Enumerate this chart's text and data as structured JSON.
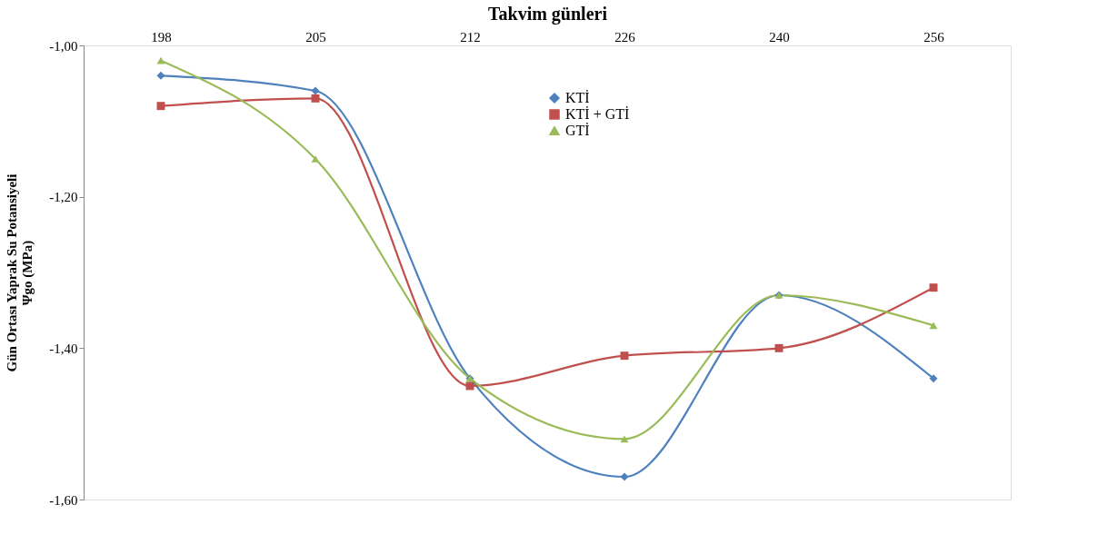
{
  "chart_data": {
    "type": "line",
    "xlabel": "Takvim günleri",
    "ylabel": "Gün Ortası Yaprak Su Potansiyeli\nΨgo (MPa)",
    "categories": [
      "198",
      "205",
      "212",
      "226",
      "240",
      "256"
    ],
    "series": [
      {
        "name": "KTİ",
        "color": "#4f81bd",
        "marker": "diamond",
        "values": [
          -1.04,
          -1.06,
          -1.44,
          -1.57,
          -1.33,
          -1.44
        ]
      },
      {
        "name": "KTİ + GTİ",
        "color": "#c0504d",
        "marker": "square",
        "values": [
          -1.08,
          -1.07,
          -1.45,
          -1.41,
          -1.4,
          -1.32
        ]
      },
      {
        "name": "GTİ",
        "color": "#9bbb59",
        "marker": "triangle",
        "values": [
          -1.02,
          -1.15,
          -1.44,
          -1.52,
          -1.33,
          -1.37
        ]
      }
    ],
    "ylim": [
      -1.6,
      -1.0
    ],
    "yticks": [
      {
        "value": -1.0,
        "label": "-1,00"
      },
      {
        "value": -1.2,
        "label": "-1,20"
      },
      {
        "value": -1.4,
        "label": "-1,40"
      },
      {
        "value": -1.6,
        "label": "-1,60"
      }
    ],
    "grid": false,
    "legend": "top"
  }
}
